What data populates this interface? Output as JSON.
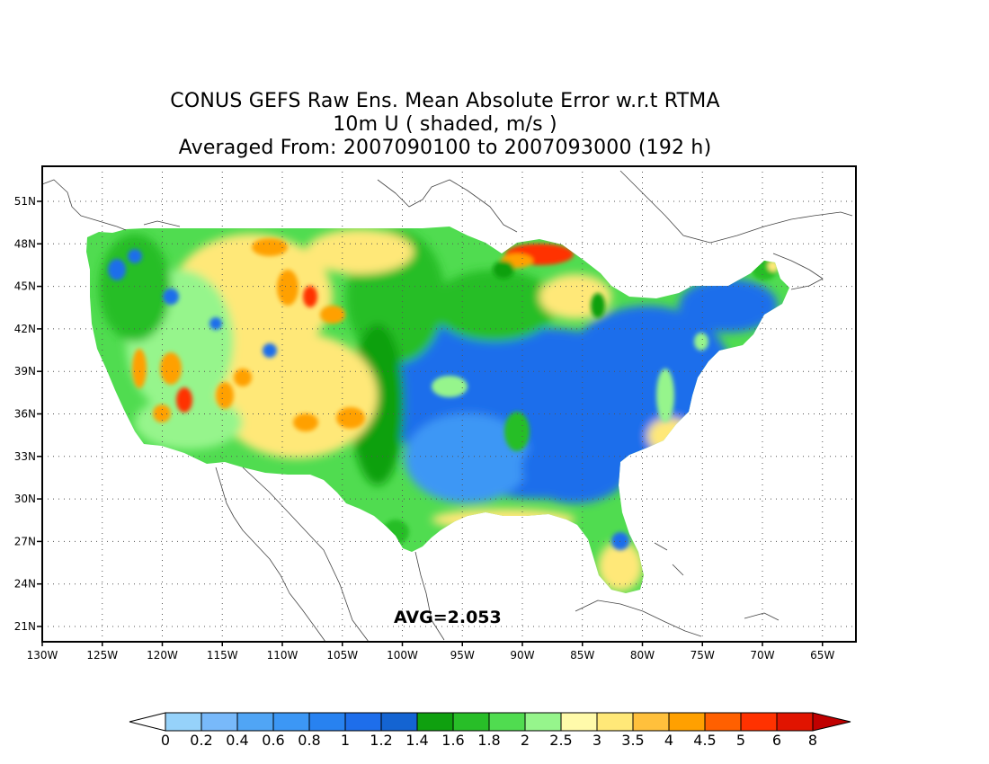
{
  "title": {
    "line1": "CONUS GEFS Raw Ens. Mean Absolute Error w.r.t RTMA",
    "line2": "10m U ( shaded, m/s )",
    "line3": "Averaged From: 2007090100 to 2007093000 (192 h)"
  },
  "average_label": "AVG=2.053",
  "axes": {
    "lon_ticks": [
      "130W",
      "125W",
      "120W",
      "115W",
      "110W",
      "105W",
      "100W",
      "95W",
      "90W",
      "85W",
      "80W",
      "75W",
      "70W",
      "65W"
    ],
    "lat_ticks": [
      "51N",
      "48N",
      "45N",
      "42N",
      "39N",
      "36N",
      "33N",
      "30N",
      "27N",
      "24N",
      "21N"
    ],
    "lon_range": [
      -130,
      -62
    ],
    "lat_range": [
      19.5,
      53.5
    ]
  },
  "colorbar": {
    "levels": [
      "0",
      "0.2",
      "0.4",
      "0.6",
      "0.8",
      "1",
      "1.2",
      "1.4",
      "1.6",
      "1.8",
      "2",
      "2.5",
      "3",
      "3.5",
      "4",
      "4.5",
      "5",
      "6",
      "8"
    ],
    "colors": [
      "#96d2fa",
      "#78b9fa",
      "#50a5f5",
      "#3c97f5",
      "#2882f0",
      "#1e6eeb",
      "#1464d2",
      "#0fa00f",
      "#28be28",
      "#50dc50",
      "#96f58c",
      "#fffaaa",
      "#ffe878",
      "#ffc03c",
      "#ffa000",
      "#ff6000",
      "#ff3200",
      "#e11400",
      "#c00000"
    ],
    "under_color": "#ffffff",
    "over_color": "#c00000"
  },
  "map_colors": {
    "blue": "#1e6eeb",
    "blue_light": "#3c97f5",
    "green_dark": "#0fa00f",
    "green": "#28be28",
    "green_light": "#50dc50",
    "green_pale": "#96f58c",
    "yellow": "#ffe878",
    "orange": "#ffa000",
    "red": "#ff3200"
  }
}
